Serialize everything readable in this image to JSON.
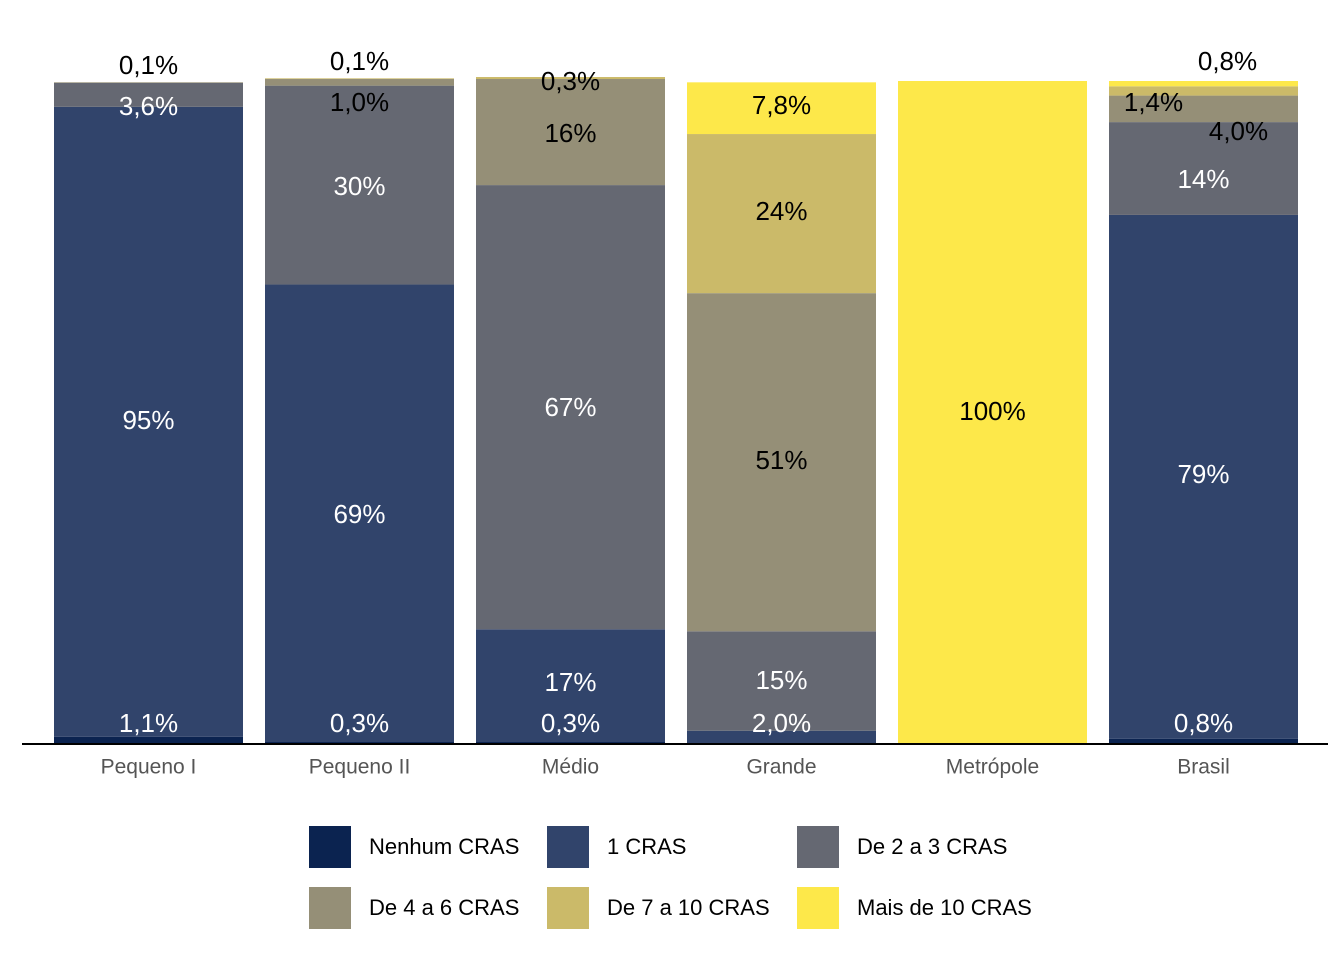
{
  "chart_data": {
    "type": "bar",
    "stacked": true,
    "title": "",
    "xlabel": "",
    "ylabel": "",
    "ylim": [
      0,
      100
    ],
    "legend_position": "bottom",
    "categories": [
      "Pequeno I",
      "Pequeno II",
      "Médio",
      "Grande",
      "Metrópole",
      "Brasil"
    ],
    "series": [
      {
        "name": "Nenhum CRAS",
        "color": "#0b2350",
        "values": [
          1.1,
          0.3,
          0.3,
          0,
          0,
          0.8
        ],
        "labels": [
          "1,1%",
          "0,3%",
          "0,3%",
          "",
          "",
          "0,8%"
        ]
      },
      {
        "name": "1 CRAS",
        "color": "#31446b",
        "values": [
          95,
          69,
          17,
          2.0,
          0,
          79
        ],
        "labels": [
          "95%",
          "69%",
          "17%",
          "2,0%",
          "",
          "79%"
        ]
      },
      {
        "name": "De 2 a 3 CRAS",
        "color": "#656872",
        "values": [
          3.6,
          30,
          67,
          15,
          0,
          14
        ],
        "labels": [
          "3,6%",
          "30%",
          "67%",
          "15%",
          "",
          "14%"
        ]
      },
      {
        "name": "De 4 a 6 CRAS",
        "color": "#958f77",
        "values": [
          0.1,
          1.0,
          16,
          51,
          0,
          4.0
        ],
        "labels": [
          "0,1%",
          "1,0%",
          "16%",
          "51%",
          "",
          "4,0%"
        ]
      },
      {
        "name": "De 7 a 10 CRAS",
        "color": "#cbba69",
        "values": [
          0,
          0.1,
          0.3,
          24,
          0,
          1.4
        ],
        "labels": [
          "",
          "0,1%",
          "0,3%",
          "24%",
          "",
          "1,4%"
        ]
      },
      {
        "name": "Mais de 10 CRAS",
        "color": "#fde84a",
        "values": [
          0,
          0,
          0,
          7.8,
          100,
          0.8
        ],
        "labels": [
          "",
          "",
          "",
          "7,8%",
          "100%",
          "0,8%"
        ]
      }
    ]
  }
}
